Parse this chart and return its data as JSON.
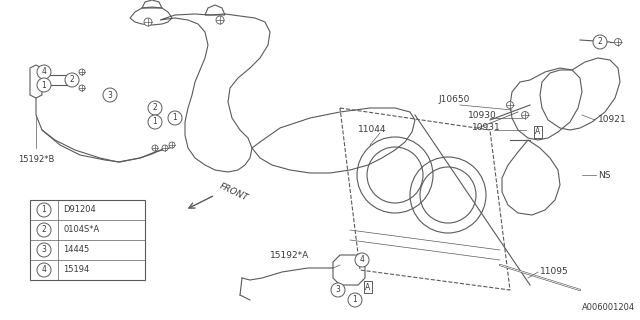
{
  "bg_color": "#ffffff",
  "line_color": "#5a5a5a",
  "text_color": "#3a3a3a",
  "part_number": "A006001204",
  "legend_items": [
    {
      "num": "1",
      "code": "D91204"
    },
    {
      "num": "2",
      "code": "0104S*A"
    },
    {
      "num": "3",
      "code": "14445"
    },
    {
      "num": "4",
      "code": "15194"
    }
  ],
  "figsize": [
    6.4,
    3.2
  ],
  "dpi": 100,
  "xlim": [
    0,
    640
  ],
  "ylim": [
    0,
    320
  ]
}
